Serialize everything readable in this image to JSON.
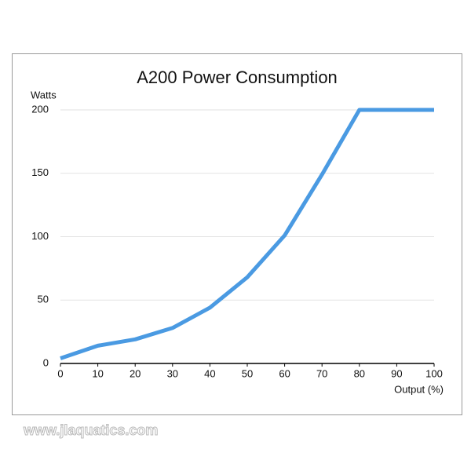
{
  "chart_data": {
    "type": "line",
    "title": "A200 Power Consumption",
    "y_label": "Watts",
    "x_label": "Output (%)",
    "x": [
      0,
      10,
      20,
      30,
      40,
      50,
      60,
      70,
      80,
      90,
      100
    ],
    "series": [
      {
        "name": "A200",
        "color": "#4a9ae2",
        "values": [
          4,
          14,
          19,
          28,
          44,
          68,
          101,
          149,
          200,
          200,
          200
        ]
      }
    ],
    "xlim": [
      0,
      100
    ],
    "xticks": [
      0,
      10,
      20,
      30,
      40,
      50,
      60,
      70,
      80,
      90,
      100
    ],
    "ylim": [
      0,
      200
    ],
    "yticks": [
      0,
      50,
      100,
      150,
      200
    ],
    "grid": true,
    "legend": false,
    "watermark": "www.jlaquatics.com"
  }
}
